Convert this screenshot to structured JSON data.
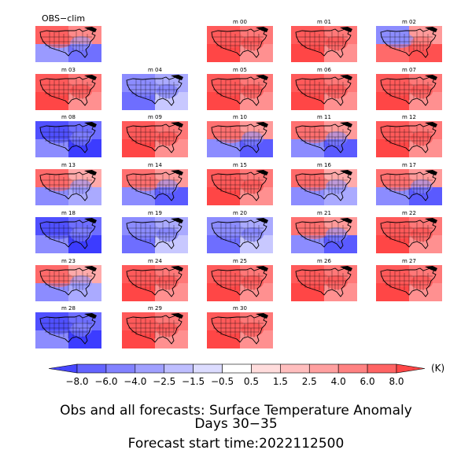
{
  "panels": [
    {
      "label": "OBS−clim",
      "pattern": "obs"
    },
    {
      "label": "m 00",
      "pattern": "warm"
    },
    {
      "label": "m 01",
      "pattern": "warm"
    },
    {
      "label": "m 02",
      "pattern": "westcool"
    },
    {
      "label": "m 03",
      "pattern": "warm"
    },
    {
      "label": "m 04",
      "pattern": "cool"
    },
    {
      "label": "m 05",
      "pattern": "warm"
    },
    {
      "label": "m 06",
      "pattern": "warm"
    },
    {
      "label": "m 07",
      "pattern": "warm"
    },
    {
      "label": "m 08",
      "pattern": "cold"
    },
    {
      "label": "m 09",
      "pattern": "warm"
    },
    {
      "label": "m 10",
      "pattern": "eastcool"
    },
    {
      "label": "m 11",
      "pattern": "eastcool"
    },
    {
      "label": "m 12",
      "pattern": "warm"
    },
    {
      "label": "m 13",
      "pattern": "mixed"
    },
    {
      "label": "m 14",
      "pattern": "eastcool"
    },
    {
      "label": "m 15",
      "pattern": "warm"
    },
    {
      "label": "m 16",
      "pattern": "mixed"
    },
    {
      "label": "m 17",
      "pattern": "eastcool"
    },
    {
      "label": "m 18",
      "pattern": "cold"
    },
    {
      "label": "m 19",
      "pattern": "cool"
    },
    {
      "label": "m 20",
      "pattern": "cool"
    },
    {
      "label": "m 21",
      "pattern": "eastcool"
    },
    {
      "label": "m 22",
      "pattern": "warm"
    },
    {
      "label": "m 23",
      "pattern": "mixed"
    },
    {
      "label": "m 24",
      "pattern": "warm"
    },
    {
      "label": "m 25",
      "pattern": "warm"
    },
    {
      "label": "m 26",
      "pattern": "warm"
    },
    {
      "label": "m 27",
      "pattern": "warm"
    },
    {
      "label": "m 28",
      "pattern": "cold"
    },
    {
      "label": "m 29",
      "pattern": "warm"
    },
    {
      "label": "m 30",
      "pattern": "warm"
    }
  ],
  "colorbar": {
    "levels": [
      "−8.0",
      "−6.0",
      "−4.0",
      "−2.5",
      "−1.5",
      "−0.5",
      "0.5",
      "1.5",
      "2.5",
      "4.0",
      "6.0",
      "8.0"
    ],
    "colors": [
      "#4646ff",
      "#6464ff",
      "#8282ff",
      "#a0a0ff",
      "#bebeff",
      "#dcdcff",
      "#ffffff",
      "#ffdcdc",
      "#ffbebe",
      "#ffa0a0",
      "#ff8282",
      "#ff6464",
      "#ff4646"
    ],
    "unit": "(K)"
  },
  "title": {
    "line1": "Obs and all forecasts: Surface Temperature Anomaly",
    "line2": "Days 30−35",
    "line3": "Forecast start time:2022112500"
  }
}
